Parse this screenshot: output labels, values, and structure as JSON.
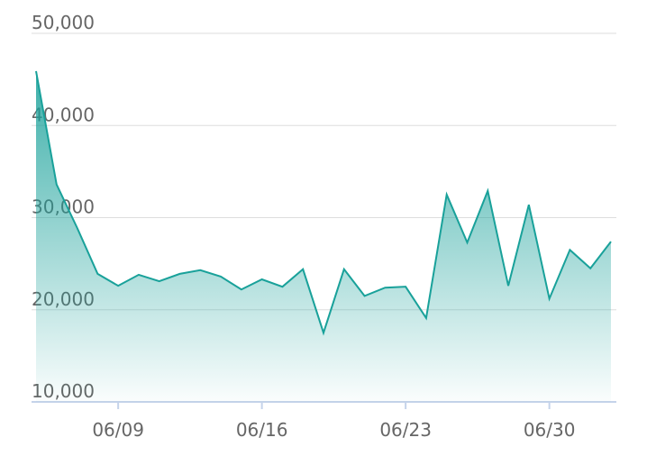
{
  "chart_data": {
    "type": "area",
    "categories": [
      null,
      null,
      null,
      null,
      "06/09",
      null,
      null,
      null,
      null,
      null,
      null,
      "06/16",
      null,
      null,
      null,
      null,
      null,
      null,
      "06/23",
      null,
      null,
      null,
      null,
      null,
      null,
      "06/30",
      null,
      null,
      null
    ],
    "values": [
      45900,
      33600,
      28900,
      23900,
      22600,
      23800,
      23100,
      23900,
      24300,
      23600,
      22200,
      23300,
      22500,
      24400,
      17500,
      24400,
      21500,
      22400,
      22500,
      19100,
      32500,
      27300,
      32900,
      22600,
      31400,
      21200,
      26500,
      24500,
      27400
    ],
    "color": "#19a19a",
    "ylim": [
      10000,
      50000
    ],
    "yticks": [
      {
        "value": 10000,
        "label": "10,000"
      },
      {
        "value": 20000,
        "label": "20,000"
      },
      {
        "value": 30000,
        "label": "30,000"
      },
      {
        "value": 40000,
        "label": "40,000"
      },
      {
        "value": 50000,
        "label": "50,000"
      }
    ],
    "grid": true
  }
}
